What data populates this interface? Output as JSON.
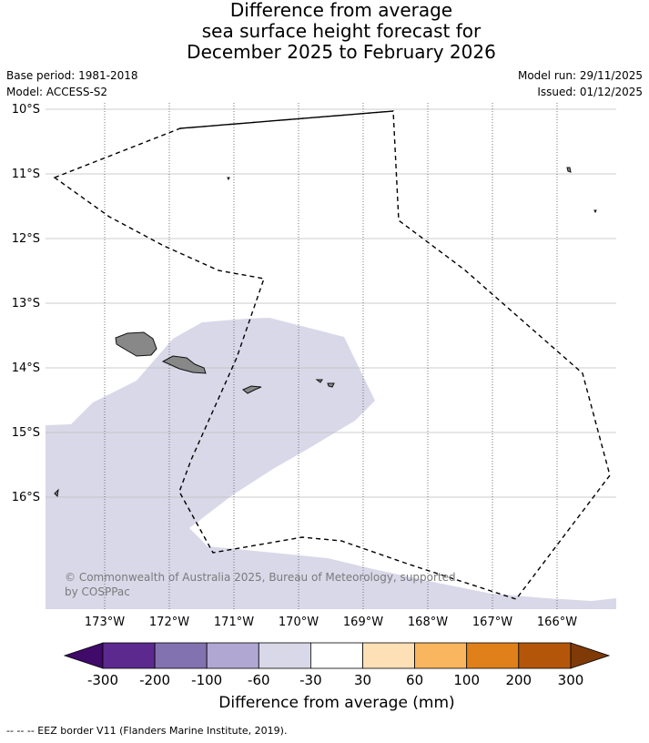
{
  "title": {
    "line1": "Difference from average",
    "line2": "sea surface height forecast for",
    "line3": "December 2025 to February 2026"
  },
  "meta": {
    "base_period": "Base period: 1981-2018",
    "model": "Model: ACCESS-S2",
    "model_run": "Model run: 29/11/2025",
    "issued": "Issued: 01/12/2025"
  },
  "map": {
    "lat_labels": [
      "10°S",
      "11°S",
      "12°S",
      "13°S",
      "14°S",
      "15°S",
      "16°S"
    ],
    "lon_labels": [
      "173°W",
      "172°W",
      "171°W",
      "170°W",
      "169°W",
      "168°W",
      "167°W",
      "166°W"
    ],
    "anomaly_fill_color": "#d8d8e9",
    "land_color": "#888888",
    "copyright_line1": "© Commonwealth of Australia 2025, Bureau of Meteorology, supported",
    "copyright_line2": "by COSPPac"
  },
  "colorbar": {
    "label": "Difference from average (mm)",
    "ticks": [
      "-300",
      "-200",
      "-100",
      "-60",
      "-30",
      "30",
      "60",
      "100",
      "200",
      "300"
    ],
    "colors": [
      "#3f0a69",
      "#5c2a8f",
      "#8272b0",
      "#b0a8d2",
      "#d8d8e9",
      "#ffffff",
      "#fde0b5",
      "#fab55f",
      "#e0801a",
      "#b4560a",
      "#7f3a08"
    ]
  },
  "footer": {
    "eez_note": "--  --  -- EEZ border V11 (Flanders Marine Institute, 2019)."
  }
}
